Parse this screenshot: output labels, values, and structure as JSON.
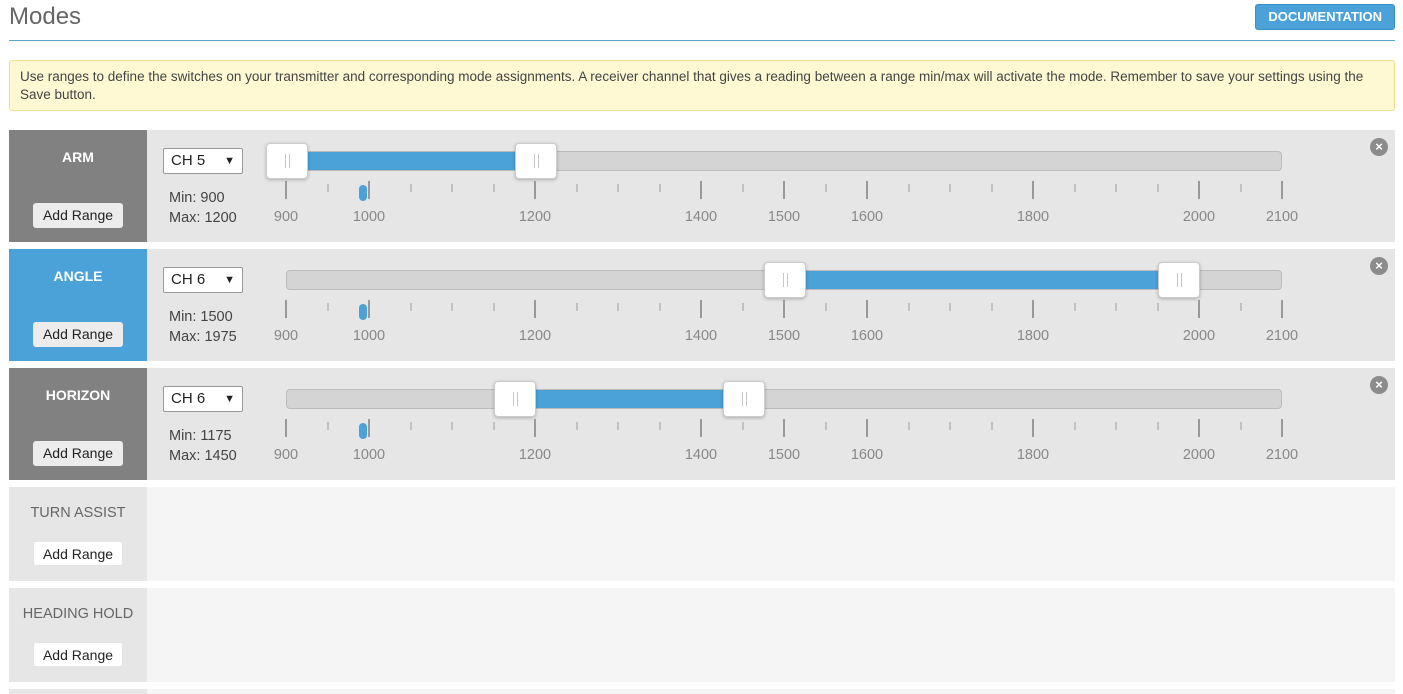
{
  "header": {
    "title": "Modes",
    "doc_label": "DOCUMENTATION"
  },
  "note": "Use ranges to define the switches on your transmitter and corresponding mode assignments. A receiver channel that gives a reading between a range min/max will activate the mode. Remember to save your settings using the Save button.",
  "scale": {
    "min": 900,
    "max": 2100,
    "labels": [
      "900",
      "1000",
      "1200",
      "1400",
      "1500",
      "1600",
      "1800",
      "2000",
      "2100"
    ]
  },
  "current_value": 1000,
  "modes": [
    {
      "name": "ARM",
      "state": "enabled",
      "channel": "CH 5",
      "min_text": "Min: 900",
      "max_text": "Max: 1200",
      "range": [
        900,
        1200
      ],
      "add_label": "Add Range"
    },
    {
      "name": "ANGLE",
      "state": "active",
      "channel": "CH 6",
      "min_text": "Min: 1500",
      "max_text": "Max: 1975",
      "range": [
        1500,
        1975
      ],
      "add_label": "Add Range"
    },
    {
      "name": "HORIZON",
      "state": "enabled",
      "channel": "CH 6",
      "min_text": "Min: 1175",
      "max_text": "Max: 1450",
      "range": [
        1175,
        1450
      ],
      "add_label": "Add Range"
    },
    {
      "name": "TURN ASSIST",
      "state": "inactive",
      "add_label": "Add Range"
    },
    {
      "name": "HEADING HOLD",
      "state": "inactive",
      "add_label": "Add Range"
    }
  ],
  "colors": {
    "accent": "#4aa2d8",
    "label_gray": "#818181"
  },
  "icons": {
    "remove": "close-circle-icon",
    "dropdown": "chevron-down-icon"
  }
}
